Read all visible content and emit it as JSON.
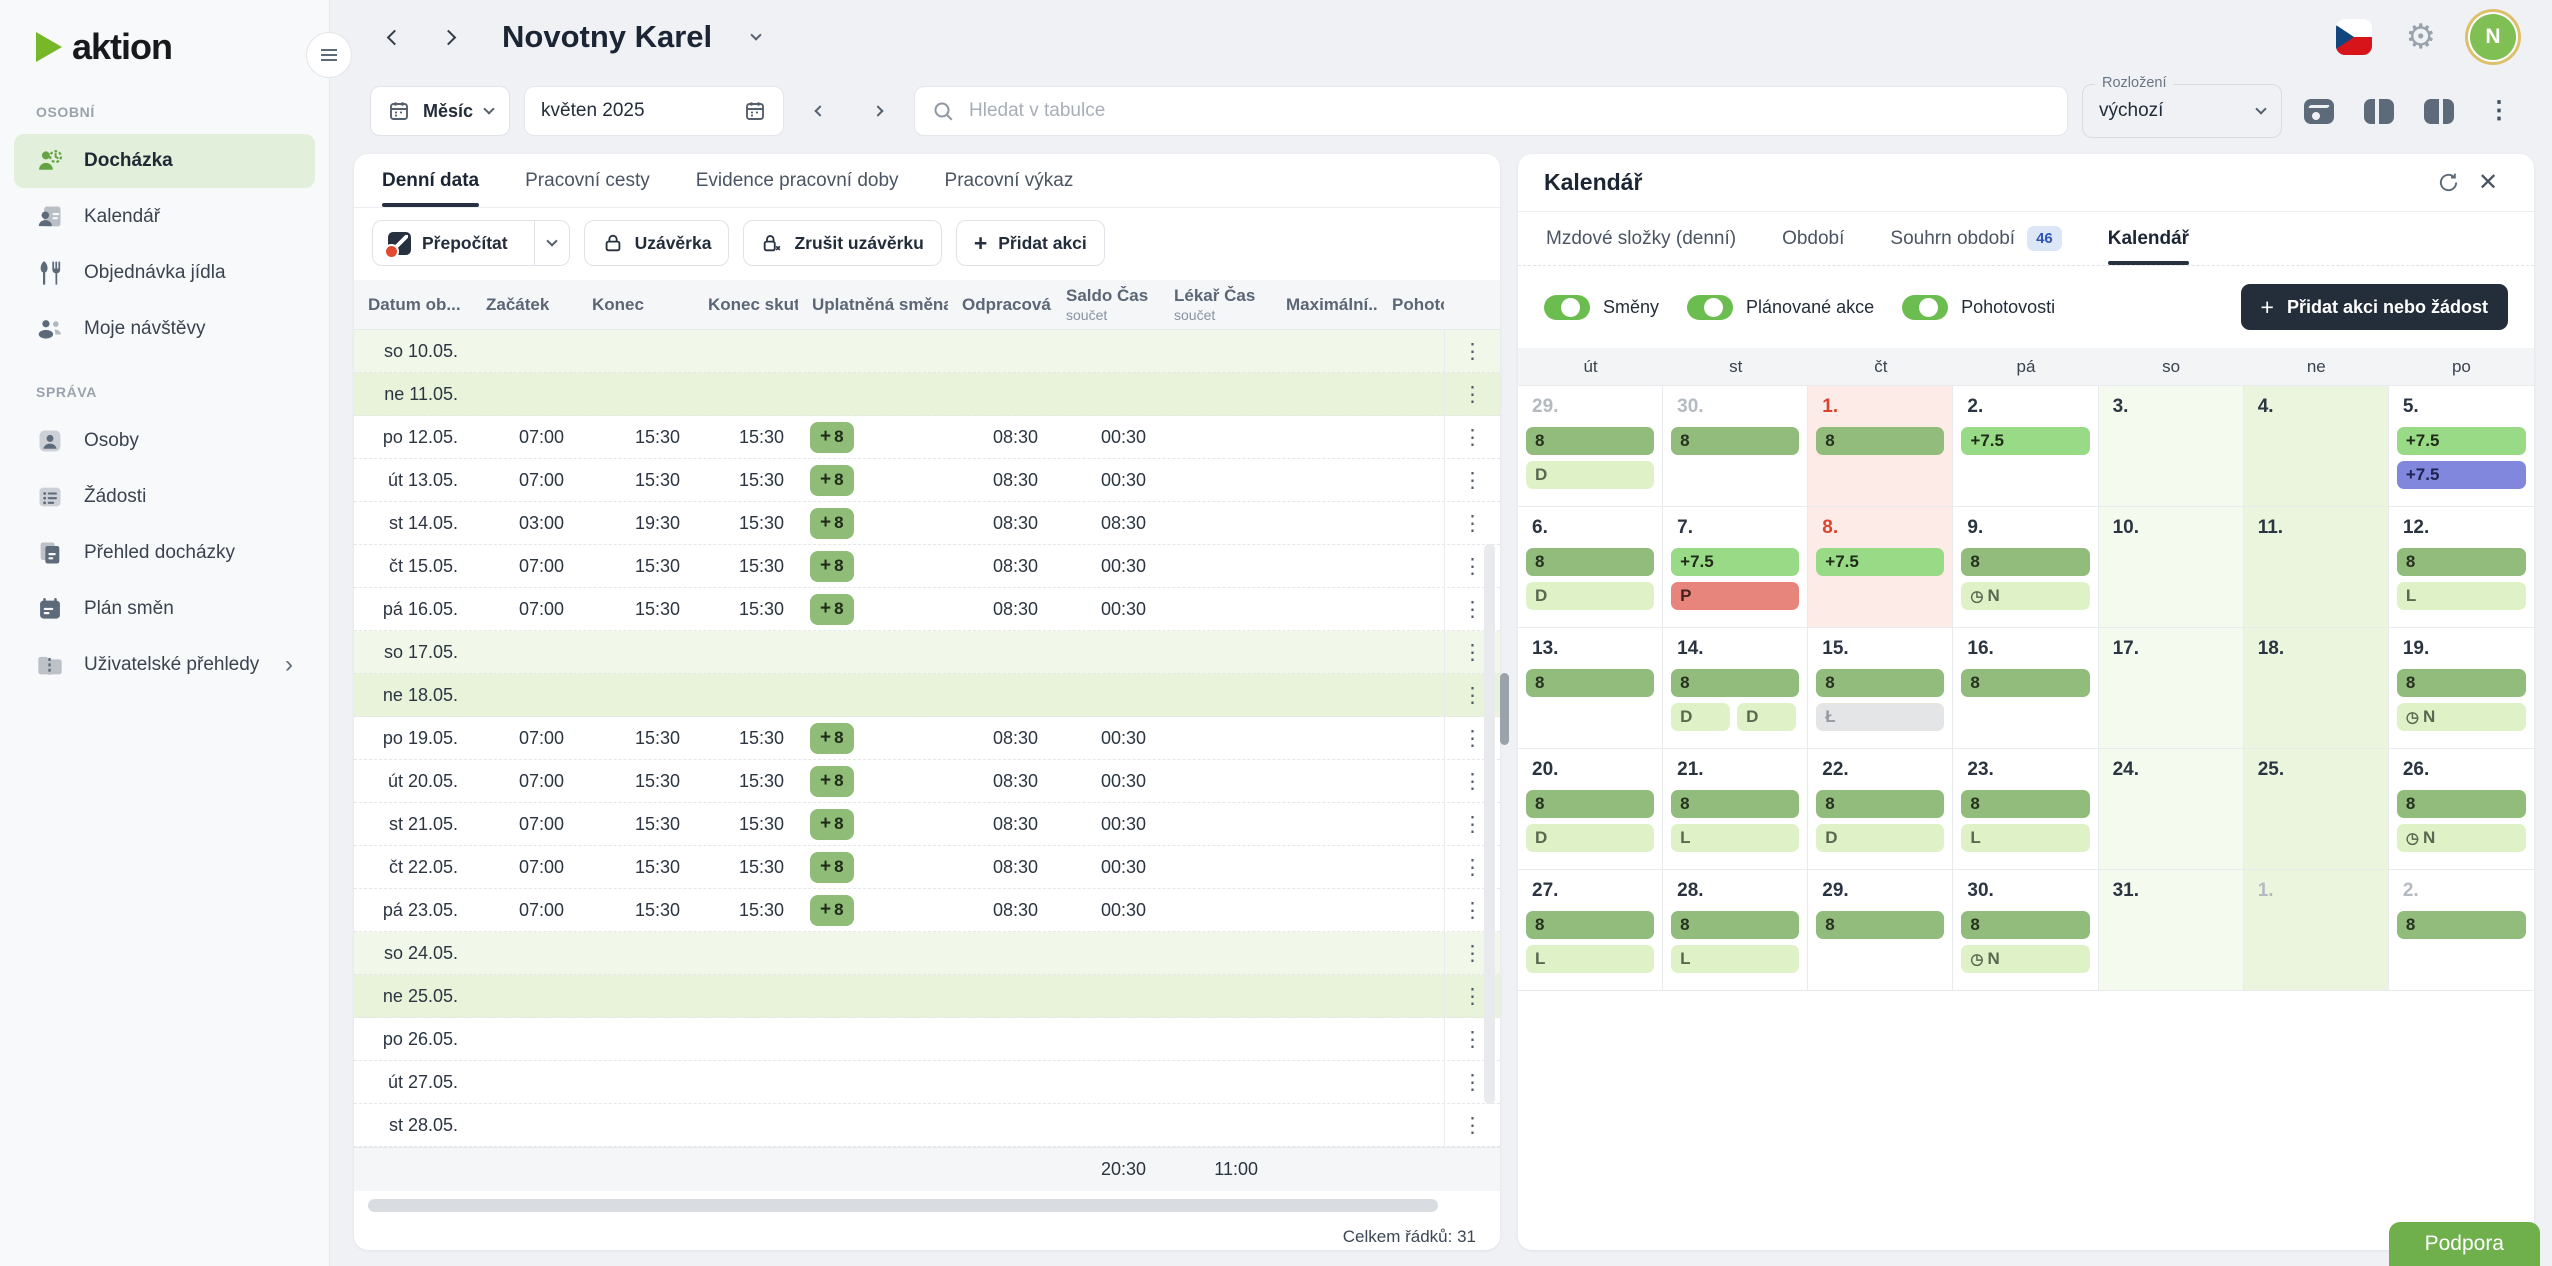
{
  "app": {
    "logo_text": "aktion",
    "avatar_initial": "N",
    "support_label": "Podpora"
  },
  "header": {
    "title": "Novotny Karel"
  },
  "sidebar": {
    "sections": [
      {
        "label": "OSOBNÍ",
        "items": [
          {
            "label": "Docházka",
            "icon": "attendance-icon",
            "active": true
          },
          {
            "label": "Kalendář",
            "icon": "calendar-person-icon"
          },
          {
            "label": "Objednávka jídla",
            "icon": "cutlery-icon"
          },
          {
            "label": "Moje návštěvy",
            "icon": "visitors-icon"
          }
        ]
      },
      {
        "label": "SPRÁVA",
        "items": [
          {
            "label": "Osoby",
            "icon": "person-icon"
          },
          {
            "label": "Žádosti",
            "icon": "list-icon"
          },
          {
            "label": "Přehled docházky",
            "icon": "pages-icon"
          },
          {
            "label": "Plán směn",
            "icon": "shift-calendar-icon"
          },
          {
            "label": "Uživatelské přehledy",
            "icon": "folder-icon",
            "chevron": true
          }
        ]
      }
    ]
  },
  "toolbar": {
    "period_button": "Měsíc",
    "date_value": "květen 2025",
    "search_placeholder": "Hledat v tabulce",
    "layout_label": "Rozložení",
    "layout_value": "výchozí"
  },
  "table_card": {
    "tabs": [
      {
        "label": "Denní data",
        "active": true
      },
      {
        "label": "Pracovní cesty"
      },
      {
        "label": "Evidence pracovní doby"
      },
      {
        "label": "Pracovní výkaz"
      }
    ],
    "actions": {
      "recalculate": "Přepočítat",
      "closure": "Uzávěrka",
      "cancel_closure": "Zrušit uzávěrku",
      "add_action": "Přidat akci"
    },
    "columns": [
      {
        "label": "Datum ob..."
      },
      {
        "label": "Začátek"
      },
      {
        "label": "Konec"
      },
      {
        "label": "Konec skut..."
      },
      {
        "label": "Uplatněná směna"
      },
      {
        "label": "Odpracová..."
      },
      {
        "label": "Saldo Čas",
        "sub": "součet"
      },
      {
        "label": "Lékař Čas",
        "sub": "součet"
      },
      {
        "label": "Maximální..."
      },
      {
        "label": "Pohoto"
      }
    ],
    "rows": [
      {
        "date": "so 10.05.",
        "kind": "sat"
      },
      {
        "date": "ne 11.05.",
        "kind": "sun"
      },
      {
        "date": "po 12.05.",
        "start": "07:00",
        "end": "15:30",
        "end_actual": "15:30",
        "shift": "8",
        "worked": "08:30",
        "saldo": "00:30"
      },
      {
        "date": "út 13.05.",
        "start": "07:00",
        "end": "15:30",
        "end_actual": "15:30",
        "shift": "8",
        "worked": "08:30",
        "saldo": "00:30"
      },
      {
        "date": "st 14.05.",
        "start": "03:00",
        "end": "19:30",
        "end_actual": "15:30",
        "shift": "8",
        "worked": "08:30",
        "saldo": "08:30"
      },
      {
        "date": "čt 15.05.",
        "start": "07:00",
        "end": "15:30",
        "end_actual": "15:30",
        "shift": "8",
        "worked": "08:30",
        "saldo": "00:30"
      },
      {
        "date": "pá 16.05.",
        "start": "07:00",
        "end": "15:30",
        "end_actual": "15:30",
        "shift": "8",
        "worked": "08:30",
        "saldo": "00:30"
      },
      {
        "date": "so 17.05.",
        "kind": "sat"
      },
      {
        "date": "ne 18.05.",
        "kind": "sun"
      },
      {
        "date": "po 19.05.",
        "start": "07:00",
        "end": "15:30",
        "end_actual": "15:30",
        "shift": "8",
        "worked": "08:30",
        "saldo": "00:30"
      },
      {
        "date": "út 20.05.",
        "start": "07:00",
        "end": "15:30",
        "end_actual": "15:30",
        "shift": "8",
        "worked": "08:30",
        "saldo": "00:30"
      },
      {
        "date": "st 21.05.",
        "start": "07:00",
        "end": "15:30",
        "end_actual": "15:30",
        "shift": "8",
        "worked": "08:30",
        "saldo": "00:30"
      },
      {
        "date": "čt 22.05.",
        "start": "07:00",
        "end": "15:30",
        "end_actual": "15:30",
        "shift": "8",
        "worked": "08:30",
        "saldo": "00:30"
      },
      {
        "date": "pá 23.05.",
        "start": "07:00",
        "end": "15:30",
        "end_actual": "15:30",
        "shift": "8",
        "worked": "08:30",
        "saldo": "00:30"
      },
      {
        "date": "so 24.05.",
        "kind": "sat"
      },
      {
        "date": "ne 25.05.",
        "kind": "sun"
      },
      {
        "date": "po 26.05."
      },
      {
        "date": "út 27.05."
      },
      {
        "date": "st 28.05."
      }
    ],
    "summary": {
      "saldo": "20:30",
      "lekar": "11:00"
    },
    "footer": "Celkem řádků: 31"
  },
  "panel": {
    "title": "Kalendář",
    "tabs": [
      {
        "label": "Mzdové složky (denní)"
      },
      {
        "label": "Období"
      },
      {
        "label": "Souhrn období",
        "badge": "46"
      },
      {
        "label": "Kalendář",
        "active": true
      }
    ],
    "toggles": [
      {
        "label": "Směny",
        "on": true
      },
      {
        "label": "Plánované akce",
        "on": true
      },
      {
        "label": "Pohotovosti",
        "on": true
      }
    ],
    "add_button_label": "Přidat akci nebo žádost",
    "day_headers": [
      "út",
      "st",
      "čt",
      "pá",
      "so",
      "ne",
      "po"
    ],
    "weeks": [
      [
        {
          "day": "29.",
          "muted": true,
          "chips": [
            {
              "text": "8",
              "kind": "shift"
            },
            {
              "text": "D",
              "kind": "pale"
            }
          ]
        },
        {
          "day": "30.",
          "muted": true,
          "chips": [
            {
              "text": "8",
              "kind": "shift"
            }
          ]
        },
        {
          "day": "1.",
          "holiday": true,
          "chips": [
            {
              "text": "8",
              "kind": "shift"
            }
          ]
        },
        {
          "day": "2.",
          "chips": [
            {
              "text": "+7.5",
              "kind": "plan"
            }
          ]
        },
        {
          "day": "3.",
          "chips": []
        },
        {
          "day": "4.",
          "chips": []
        },
        {
          "day": "5.",
          "chips": [
            {
              "text": "+7.5",
              "kind": "plan"
            },
            {
              "text": "+7.5",
              "kind": "purple"
            }
          ]
        }
      ],
      [
        {
          "day": "6.",
          "chips": [
            {
              "text": "8",
              "kind": "shift"
            },
            {
              "text": "D",
              "kind": "pale"
            }
          ]
        },
        {
          "day": "7.",
          "chips": [
            {
              "text": "+7.5",
              "kind": "plan"
            },
            {
              "text": "P",
              "kind": "red"
            }
          ]
        },
        {
          "day": "8.",
          "holiday": true,
          "chips": [
            {
              "text": "+7.5",
              "kind": "plan"
            }
          ]
        },
        {
          "day": "9.",
          "chips": [
            {
              "text": "8",
              "kind": "shift"
            },
            {
              "text": "N",
              "kind": "pale",
              "icon": "clock"
            }
          ]
        },
        {
          "day": "10.",
          "chips": []
        },
        {
          "day": "11.",
          "chips": []
        },
        {
          "day": "12.",
          "chips": [
            {
              "text": "8",
              "kind": "shift"
            },
            {
              "text": "L",
              "kind": "pale"
            }
          ]
        }
      ],
      [
        {
          "day": "13.",
          "chips": [
            {
              "text": "8",
              "kind": "shift"
            }
          ]
        },
        {
          "day": "14.",
          "chips": [
            {
              "text": "8",
              "kind": "shift"
            },
            {
              "text": "D",
              "kind": "pale",
              "half": true
            },
            {
              "text": "D",
              "kind": "pale",
              "half": true
            }
          ]
        },
        {
          "day": "15.",
          "chips": [
            {
              "text": "8",
              "kind": "shift"
            },
            {
              "text": "Ł",
              "kind": "gray"
            }
          ]
        },
        {
          "day": "16.",
          "chips": [
            {
              "text": "8",
              "kind": "shift"
            }
          ]
        },
        {
          "day": "17.",
          "chips": []
        },
        {
          "day": "18.",
          "chips": []
        },
        {
          "day": "19.",
          "chips": [
            {
              "text": "8",
              "kind": "shift"
            },
            {
              "text": "N",
              "kind": "pale",
              "icon": "clock"
            }
          ]
        }
      ],
      [
        {
          "day": "20.",
          "chips": [
            {
              "text": "8",
              "kind": "shift"
            },
            {
              "text": "D",
              "kind": "pale"
            }
          ]
        },
        {
          "day": "21.",
          "chips": [
            {
              "text": "8",
              "kind": "shift"
            },
            {
              "text": "L",
              "kind": "pale"
            }
          ]
        },
        {
          "day": "22.",
          "chips": [
            {
              "text": "8",
              "kind": "shift"
            },
            {
              "text": "D",
              "kind": "pale"
            }
          ]
        },
        {
          "day": "23.",
          "chips": [
            {
              "text": "8",
              "kind": "shift"
            },
            {
              "text": "L",
              "kind": "pale"
            }
          ]
        },
        {
          "day": "24.",
          "chips": []
        },
        {
          "day": "25.",
          "chips": []
        },
        {
          "day": "26.",
          "chips": [
            {
              "text": "8",
              "kind": "shift"
            },
            {
              "text": "N",
              "kind": "pale",
              "icon": "clock"
            }
          ]
        }
      ],
      [
        {
          "day": "27.",
          "chips": [
            {
              "text": "8",
              "kind": "shift"
            },
            {
              "text": "L",
              "kind": "pale"
            }
          ]
        },
        {
          "day": "28.",
          "chips": [
            {
              "text": "8",
              "kind": "shift"
            },
            {
              "text": "L",
              "kind": "pale"
            }
          ]
        },
        {
          "day": "29.",
          "chips": [
            {
              "text": "8",
              "kind": "shift"
            }
          ]
        },
        {
          "day": "30.",
          "chips": [
            {
              "text": "8",
              "kind": "shift"
            },
            {
              "text": "N",
              "kind": "pale",
              "icon": "clock"
            }
          ]
        },
        {
          "day": "31.",
          "chips": []
        },
        {
          "day": "1.",
          "muted": true,
          "chips": []
        },
        {
          "day": "2.",
          "muted": true,
          "chips": [
            {
              "text": "8",
              "kind": "shift"
            }
          ]
        }
      ]
    ]
  },
  "colors": {
    "accent_green": "#76b82a",
    "active_item_bg": "#e2efdb",
    "chip_shift": "#92bc7c",
    "chip_planned": "#99da87",
    "chip_pale": "#def1c7",
    "chip_red": "#e7847c",
    "chip_purple": "#8187dc",
    "chip_gray": "#e4e5e7",
    "weekend_sat": "#f5faef",
    "weekend_sun": "#ebf5de",
    "holiday_bg": "#fcebe7",
    "holiday_text": "#d8442e",
    "dark_button": "#242e3b",
    "toggle_on": "#6cbd4f",
    "badge_bg": "#dbe7f7",
    "badge_text": "#2f55b8",
    "avatar_green": "#7fbf53",
    "support_green": "#6fb04c"
  }
}
